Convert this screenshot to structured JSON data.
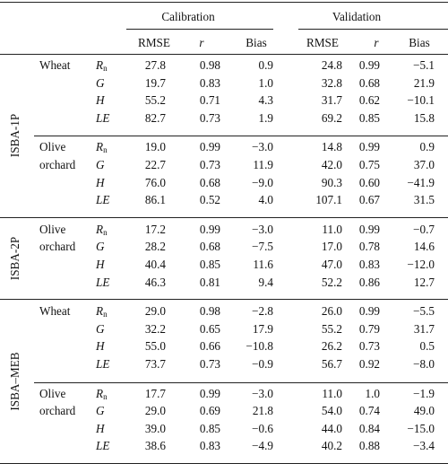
{
  "header": {
    "groups": [
      "Calibration",
      "Validation"
    ],
    "columns": [
      "RMSE",
      "r",
      "Bias",
      "RMSE",
      "r",
      "Bias"
    ]
  },
  "variables": {
    "Rn": {
      "base": "R",
      "sub": "n"
    },
    "G": {
      "base": "G"
    },
    "H": {
      "base": "H"
    },
    "LE": {
      "base": "LE"
    }
  },
  "models": [
    {
      "name": "ISBA-1P",
      "sites": [
        {
          "name": [
            "Wheat"
          ],
          "rows": [
            {
              "var": "Rn",
              "values": [
                "27.8",
                "0.98",
                "0.9",
                "24.8",
                "0.99",
                "−5.1"
              ]
            },
            {
              "var": "G",
              "values": [
                "19.7",
                "0.83",
                "1.0",
                "32.8",
                "0.68",
                "21.9"
              ]
            },
            {
              "var": "H",
              "values": [
                "55.2",
                "0.71",
                "4.3",
                "31.7",
                "0.62",
                "−10.1"
              ]
            },
            {
              "var": "LE",
              "values": [
                "82.7",
                "0.73",
                "1.9",
                "69.2",
                "0.85",
                "15.8"
              ]
            }
          ]
        },
        {
          "name": [
            "Olive",
            "orchard"
          ],
          "rows": [
            {
              "var": "Rn",
              "values": [
                "19.0",
                "0.99",
                "−3.0",
                "14.8",
                "0.99",
                "0.9"
              ]
            },
            {
              "var": "G",
              "values": [
                "22.7",
                "0.73",
                "11.9",
                "42.0",
                "0.75",
                "37.0"
              ]
            },
            {
              "var": "H",
              "values": [
                "76.0",
                "0.68",
                "−9.0",
                "90.3",
                "0.60",
                "−41.9"
              ]
            },
            {
              "var": "LE",
              "values": [
                "86.1",
                "0.52",
                "4.0",
                "107.1",
                "0.67",
                "31.5"
              ]
            }
          ]
        }
      ]
    },
    {
      "name": "ISBA-2P",
      "sites": [
        {
          "name": [
            "Olive",
            "orchard"
          ],
          "rows": [
            {
              "var": "Rn",
              "values": [
                "17.2",
                "0.99",
                "−3.0",
                "11.0",
                "0.99",
                "−0.7"
              ]
            },
            {
              "var": "G",
              "values": [
                "28.2",
                "0.68",
                "−7.5",
                "17.0",
                "0.78",
                "14.6"
              ]
            },
            {
              "var": "H",
              "values": [
                "40.4",
                "0.85",
                "11.6",
                "47.0",
                "0.83",
                "−12.0"
              ]
            },
            {
              "var": "LE",
              "values": [
                "46.3",
                "0.81",
                "9.4",
                "52.2",
                "0.86",
                "12.7"
              ]
            }
          ]
        }
      ]
    },
    {
      "name": "ISBA–MEB",
      "sites": [
        {
          "name": [
            "Wheat"
          ],
          "rows": [
            {
              "var": "Rn",
              "values": [
                "29.0",
                "0.98",
                "−2.8",
                "26.0",
                "0.99",
                "−5.5"
              ]
            },
            {
              "var": "G",
              "values": [
                "32.2",
                "0.65",
                "17.9",
                "55.2",
                "0.79",
                "31.7"
              ]
            },
            {
              "var": "H",
              "values": [
                "55.0",
                "0.66",
                "−10.8",
                "26.2",
                "0.73",
                "0.5"
              ]
            },
            {
              "var": "LE",
              "values": [
                "73.7",
                "0.73",
                "−0.9",
                "56.7",
                "0.92",
                "−8.0"
              ]
            }
          ]
        },
        {
          "name": [
            "Olive",
            "orchard"
          ],
          "rows": [
            {
              "var": "Rn",
              "values": [
                "17.7",
                "0.99",
                "−3.0",
                "11.0",
                "1.0",
                "−1.9"
              ]
            },
            {
              "var": "G",
              "values": [
                "29.0",
                "0.69",
                "21.8",
                "54.0",
                "0.74",
                "49.0"
              ]
            },
            {
              "var": "H",
              "values": [
                "39.0",
                "0.85",
                "−0.6",
                "44.0",
                "0.84",
                "−15.0"
              ]
            },
            {
              "var": "LE",
              "values": [
                "38.6",
                "0.83",
                "−4.9",
                "40.2",
                "0.88",
                "−3.4"
              ]
            }
          ]
        }
      ]
    }
  ]
}
